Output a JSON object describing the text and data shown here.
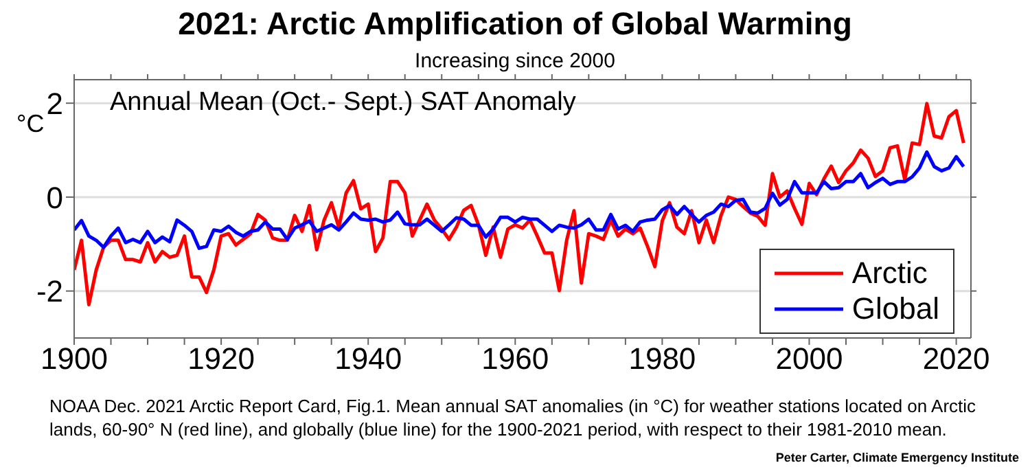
{
  "chart_data": {
    "type": "line",
    "title": "2021: Arctic Amplification of Global Warming",
    "subtitle": "Increasing since 2000",
    "ylabel": "°C",
    "annotations": [
      "Annual Mean (Oct.- Sept.) SAT Anomaly",
      "NOAA Dec. 2021 Arctic Report Card, Fig.1. Mean annual SAT anomalies (in °C) for weather stations located on Arctic lands, 60-90° N (red line), and globally (blue line) for the 1900-2021 period, with respect to their 1981-2010 mean.",
      "Peter Carter, Climate Emergency Institute"
    ],
    "x": [
      1900,
      1901,
      1902,
      1903,
      1904,
      1905,
      1906,
      1907,
      1908,
      1909,
      1910,
      1911,
      1912,
      1913,
      1914,
      1915,
      1916,
      1917,
      1918,
      1919,
      1920,
      1921,
      1922,
      1923,
      1924,
      1925,
      1926,
      1927,
      1928,
      1929,
      1930,
      1931,
      1932,
      1933,
      1934,
      1935,
      1936,
      1937,
      1938,
      1939,
      1940,
      1941,
      1942,
      1943,
      1944,
      1945,
      1946,
      1947,
      1948,
      1949,
      1950,
      1951,
      1952,
      1953,
      1954,
      1955,
      1956,
      1957,
      1958,
      1959,
      1960,
      1961,
      1962,
      1963,
      1964,
      1965,
      1966,
      1967,
      1968,
      1969,
      1970,
      1971,
      1972,
      1973,
      1974,
      1975,
      1976,
      1977,
      1978,
      1979,
      1980,
      1981,
      1982,
      1983,
      1984,
      1985,
      1986,
      1987,
      1988,
      1989,
      1990,
      1991,
      1992,
      1993,
      1994,
      1995,
      1996,
      1997,
      1998,
      1999,
      2000,
      2001,
      2002,
      2003,
      2004,
      2005,
      2006,
      2007,
      2008,
      2009,
      2010,
      2011,
      2012,
      2013,
      2014,
      2015,
      2016,
      2017,
      2018,
      2019,
      2020,
      2021
    ],
    "series": [
      {
        "name": "Arctic",
        "color": "#ff0000",
        "values": [
          -1.55,
          -0.92,
          -2.29,
          -1.55,
          -1.07,
          -0.92,
          -0.92,
          -1.33,
          -1.33,
          -1.38,
          -0.97,
          -1.38,
          -1.16,
          -1.28,
          -1.24,
          -0.83,
          -1.7,
          -1.7,
          -2.03,
          -1.55,
          -0.83,
          -0.78,
          -1.02,
          -0.9,
          -0.78,
          -0.37,
          -0.49,
          -0.87,
          -0.92,
          -0.92,
          -0.39,
          -0.73,
          -0.18,
          -1.12,
          -0.49,
          -0.12,
          -0.64,
          0.09,
          0.35,
          -0.25,
          -0.15,
          -1.16,
          -0.87,
          0.33,
          0.33,
          0.09,
          -0.83,
          -0.49,
          -0.15,
          -0.49,
          -0.68,
          -0.9,
          -0.64,
          -0.28,
          -0.18,
          -0.59,
          -1.24,
          -0.64,
          -1.28,
          -0.68,
          -0.59,
          -0.66,
          -0.49,
          -0.83,
          -1.19,
          -1.19,
          -1.99,
          -0.92,
          -0.29,
          -1.83,
          -0.78,
          -0.83,
          -0.9,
          -0.49,
          -0.83,
          -0.68,
          -0.78,
          -0.66,
          -1.05,
          -1.48,
          -0.51,
          -0.12,
          -0.64,
          -0.78,
          -0.29,
          -0.97,
          -0.49,
          -0.97,
          -0.39,
          0.0,
          -0.05,
          -0.2,
          -0.34,
          -0.41,
          -0.6,
          0.5,
          0.0,
          0.13,
          -0.24,
          -0.58,
          0.29,
          0.05,
          0.39,
          0.66,
          0.31,
          0.56,
          0.73,
          1.0,
          0.83,
          0.44,
          0.56,
          1.05,
          1.09,
          0.37,
          1.15,
          1.12,
          1.99,
          1.3,
          1.26,
          1.71,
          1.84,
          1.15
        ]
      },
      {
        "name": "Global",
        "color": "#0000ff",
        "values": [
          -0.7,
          -0.5,
          -0.83,
          -0.92,
          -1.07,
          -0.83,
          -0.66,
          -0.97,
          -0.9,
          -0.97,
          -0.73,
          -0.97,
          -0.85,
          -0.95,
          -0.49,
          -0.6,
          -0.73,
          -1.09,
          -1.05,
          -0.7,
          -0.73,
          -0.62,
          -0.75,
          -0.83,
          -0.73,
          -0.7,
          -0.53,
          -0.68,
          -0.68,
          -0.9,
          -0.66,
          -0.59,
          -0.51,
          -0.73,
          -0.66,
          -0.59,
          -0.7,
          -0.53,
          -0.34,
          -0.47,
          -0.49,
          -0.47,
          -0.53,
          -0.49,
          -0.32,
          -0.57,
          -0.59,
          -0.59,
          -0.47,
          -0.6,
          -0.73,
          -0.59,
          -0.44,
          -0.47,
          -0.6,
          -0.6,
          -0.85,
          -0.68,
          -0.43,
          -0.43,
          -0.53,
          -0.43,
          -0.47,
          -0.47,
          -0.6,
          -0.73,
          -0.6,
          -0.64,
          -0.66,
          -0.59,
          -0.47,
          -0.7,
          -0.7,
          -0.37,
          -0.68,
          -0.6,
          -0.73,
          -0.53,
          -0.49,
          -0.47,
          -0.27,
          -0.18,
          -0.37,
          -0.2,
          -0.37,
          -0.53,
          -0.39,
          -0.32,
          -0.15,
          -0.2,
          -0.07,
          -0.05,
          -0.32,
          -0.34,
          -0.24,
          0.08,
          -0.17,
          -0.05,
          0.33,
          0.09,
          0.09,
          0.09,
          0.33,
          0.18,
          0.2,
          0.33,
          0.33,
          0.5,
          0.2,
          0.31,
          0.4,
          0.27,
          0.33,
          0.33,
          0.43,
          0.62,
          0.96,
          0.65,
          0.56,
          0.62,
          0.86,
          0.65
        ]
      }
    ],
    "xlim": [
      1900,
      2022
    ],
    "xticks": [
      1900,
      {
        "value": 1905,
        "label": null
      },
      {
        "value": 1910,
        "label": null
      },
      {
        "value": 1915,
        "label": null
      },
      1920,
      {
        "value": 1925,
        "label": null
      },
      {
        "value": 1930,
        "label": null
      },
      {
        "value": 1935,
        "label": null
      },
      1940,
      {
        "value": 1945,
        "label": null
      },
      {
        "value": 1950,
        "label": null
      },
      {
        "value": 1955,
        "label": null
      },
      1960,
      {
        "value": 1965,
        "label": null
      },
      {
        "value": 1970,
        "label": null
      },
      {
        "value": 1975,
        "label": null
      },
      1980,
      {
        "value": 1985,
        "label": null
      },
      {
        "value": 1990,
        "label": null
      },
      {
        "value": 1995,
        "label": null
      },
      2000,
      {
        "value": 2005,
        "label": null
      },
      {
        "value": 2010,
        "label": null
      },
      {
        "value": 2015,
        "label": null
      },
      2020
    ],
    "ylim": [
      -3,
      2.5
    ],
    "yticks": [
      -2,
      0,
      2
    ],
    "grid": "y",
    "legend": "bottom right",
    "line_style": "solid"
  }
}
